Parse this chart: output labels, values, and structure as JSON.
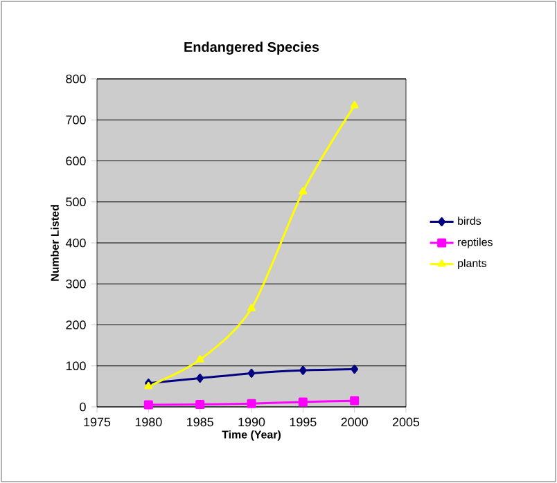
{
  "chart_data": {
    "type": "line",
    "title": "Endangered Species",
    "xlabel": "Time (Year)",
    "ylabel": "Number Listed",
    "x": [
      1980,
      1985,
      1990,
      1995,
      2000
    ],
    "series": [
      {
        "name": "birds",
        "color": "#000080",
        "marker": "diamond",
        "values": [
          58,
          70,
          82,
          89,
          92
        ]
      },
      {
        "name": "reptiles",
        "color": "#ff00ff",
        "marker": "square",
        "values": [
          5,
          6,
          8,
          12,
          15
        ]
      },
      {
        "name": "plants",
        "color": "#ffff00",
        "marker": "triangle",
        "values": [
          50,
          115,
          240,
          525,
          735
        ]
      }
    ],
    "xlim": [
      1975,
      2005
    ],
    "xticks": [
      1975,
      1980,
      1985,
      1990,
      1995,
      2000,
      2005
    ],
    "ylim": [
      0,
      800
    ],
    "yticks": [
      0,
      100,
      200,
      300,
      400,
      500,
      600,
      700,
      800
    ],
    "grid": "y",
    "legend": "right",
    "line_style": "solid"
  }
}
